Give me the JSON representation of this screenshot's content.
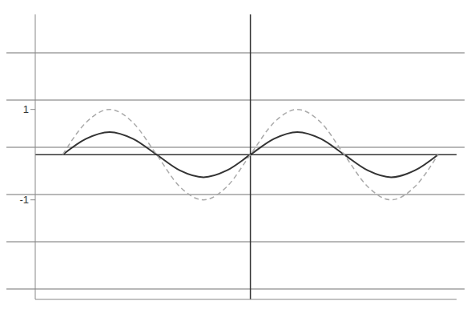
{
  "chart_data": {
    "type": "line",
    "x": [
      -6.28,
      -5.5,
      -4.71,
      -3.93,
      -3.14,
      -2.36,
      -1.57,
      -0.79,
      0,
      0.79,
      1.57,
      2.36,
      3.14,
      3.93,
      4.71,
      5.5,
      6.28
    ],
    "xlim": [
      -7.2,
      6.9
    ],
    "ylim": [
      -3.2,
      3.1
    ],
    "yticks": [
      -1,
      1
    ],
    "tick_labels": "y",
    "series": [
      {
        "color": "#333333",
        "line_style": "solid",
        "values": [
          0,
          0.35,
          0.5,
          0.35,
          0,
          -0.35,
          -0.5,
          -0.35,
          0,
          0.35,
          0.5,
          0.35,
          0,
          -0.35,
          -0.5,
          -0.35,
          0
        ]
      },
      {
        "color": "#aaaaaa",
        "line_style": "dashed",
        "values": [
          0,
          0.71,
          1,
          0.71,
          0,
          -0.71,
          -1,
          -0.71,
          0,
          0.71,
          1,
          0.71,
          0,
          -0.71,
          -1,
          -0.71,
          0
        ]
      }
    ]
  }
}
